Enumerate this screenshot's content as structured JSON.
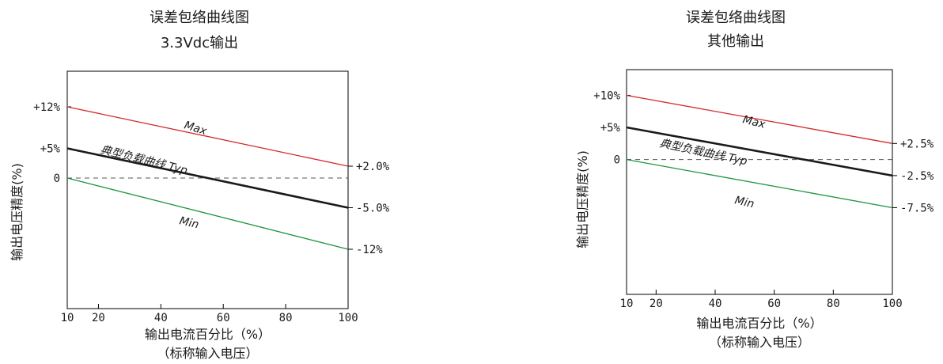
{
  "chart_data": [
    {
      "type": "line",
      "title": "误差包络曲线图",
      "subtitle": "3.3Vdc输出",
      "xlabel": "输出电流百分比（%）",
      "xlabel2": "（标称输入电压）",
      "ylabel": "输出电压精度(%)",
      "xlim": [
        10,
        100
      ],
      "x_ticks": [
        10,
        20,
        40,
        60,
        80,
        100
      ],
      "ylim": [
        -22,
        18
      ],
      "y_tick_labels": [
        {
          "value": 12,
          "text": "+12%"
        },
        {
          "value": 5,
          "text": "+5%"
        },
        {
          "value": 0,
          "text": "0"
        }
      ],
      "right_labels": [
        {
          "value": 2.0,
          "text": "+2.0%"
        },
        {
          "value": -5.0,
          "text": "-5.0%"
        },
        {
          "value": -12,
          "text": "-12%"
        }
      ],
      "series": [
        {
          "name": "Max",
          "x": [
            10,
            100
          ],
          "y": [
            12,
            2.0
          ],
          "color": "#d42a2a",
          "width": 1.3
        },
        {
          "name": "典型负载曲线 Typ",
          "x": [
            10,
            100
          ],
          "y": [
            5,
            -5.0
          ],
          "color": "#1a1a1a",
          "width": 2.6
        },
        {
          "name": "Min",
          "x": [
            10,
            100
          ],
          "y": [
            0,
            -12
          ],
          "color": "#1e9440",
          "width": 1.3
        }
      ],
      "reference_line": {
        "y": 0,
        "style": "dashed"
      }
    },
    {
      "type": "line",
      "title": "误差包络曲线图",
      "subtitle": "其他输出",
      "xlabel": "输出电流百分比（%）",
      "xlabel2": "（标称输入电压）",
      "ylabel": "输出电压精度(%)",
      "xlim": [
        10,
        100
      ],
      "x_ticks": [
        10,
        20,
        40,
        60,
        80,
        100
      ],
      "ylim": [
        -21,
        14
      ],
      "y_tick_labels": [
        {
          "value": 10,
          "text": "+10%"
        },
        {
          "value": 5,
          "text": "+5%"
        },
        {
          "value": 0,
          "text": "0"
        }
      ],
      "right_labels": [
        {
          "value": 2.5,
          "text": "+2.5%"
        },
        {
          "value": -2.5,
          "text": "-2.5%"
        },
        {
          "value": -7.5,
          "text": "-7.5%"
        }
      ],
      "series": [
        {
          "name": "Max",
          "x": [
            10,
            100
          ],
          "y": [
            10,
            2.5
          ],
          "color": "#d42a2a",
          "width": 1.3
        },
        {
          "name": "典型负载曲线 Typ",
          "x": [
            10,
            100
          ],
          "y": [
            5,
            -2.5
          ],
          "color": "#1a1a1a",
          "width": 2.6
        },
        {
          "name": "Min",
          "x": [
            10,
            100
          ],
          "y": [
            0,
            -7.5
          ],
          "color": "#1e9440",
          "width": 1.3
        }
      ],
      "reference_line": {
        "y": 0,
        "style": "dashed"
      }
    }
  ]
}
